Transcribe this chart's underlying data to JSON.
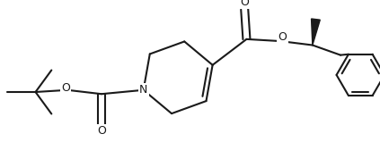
{
  "bg_color": "#ffffff",
  "line_color": "#1a1a1a",
  "line_width": 1.5,
  "figsize": [
    4.23,
    1.78
  ],
  "dpi": 100,
  "xlim": [
    0.0,
    9.5
  ],
  "ylim": [
    0.0,
    4.0
  ]
}
